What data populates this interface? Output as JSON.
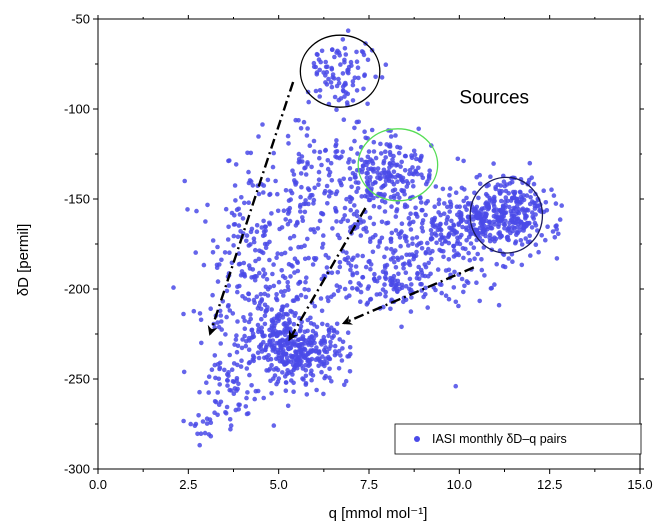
{
  "chart_data": {
    "type": "scatter",
    "xlabel": "q [mmol mol⁻¹]",
    "ylabel": "δD [permil]",
    "xlim": [
      0,
      15
    ],
    "ylim": [
      -300,
      -50
    ],
    "xticks": [
      "0.0",
      "2.5",
      "5.0",
      "7.5",
      "10.0",
      "12.5",
      "15.0"
    ],
    "yticks": [
      "-50",
      "-100",
      "-150",
      "-200",
      "-250",
      "-300"
    ],
    "grid": false,
    "legend_position": "bottom-right",
    "series": [
      {
        "name": "IASI monthly δD–q pairs",
        "color": "#4a4ae8",
        "marker": "circle",
        "clusters": [
          {
            "center": [
              6.8,
              -80
            ],
            "spread": [
              0.5,
              10
            ],
            "n": 90
          },
          {
            "center": [
              8.2,
              -135
            ],
            "spread": [
              0.6,
              10
            ],
            "n": 170
          },
          {
            "center": [
              11.0,
              -160
            ],
            "spread": [
              0.8,
              8
            ],
            "n": 300
          },
          {
            "center": [
              9.6,
              -170
            ],
            "spread": [
              1.2,
              10
            ],
            "n": 220
          },
          {
            "center": [
              5.5,
              -235
            ],
            "spread": [
              0.7,
              9
            ],
            "n": 330
          },
          {
            "center": [
              4.8,
              -215
            ],
            "spread": [
              0.9,
              18
            ],
            "n": 200
          },
          {
            "center": [
              4.5,
              -170
            ],
            "spread": [
              0.8,
              22
            ],
            "n": 160
          },
          {
            "center": [
              6.5,
              -150
            ],
            "spread": [
              0.9,
              25
            ],
            "n": 200
          },
          {
            "center": [
              8.5,
              -195
            ],
            "spread": [
              1.1,
              8
            ],
            "n": 160
          },
          {
            "center": [
              3.6,
              -258
            ],
            "spread": [
              0.4,
              10
            ],
            "n": 60
          },
          {
            "center": [
              2.9,
              -275
            ],
            "spread": [
              0.25,
              4
            ],
            "n": 14
          },
          {
            "center": [
              11.5,
              -150
            ],
            "spread": [
              0.5,
              8
            ],
            "n": 60
          }
        ],
        "outliers": [
          [
            2.4,
            -140
          ],
          [
            9.9,
            -254
          ],
          [
            8.4,
            -221
          ],
          [
            12.7,
            -183
          ],
          [
            11.1,
            -209
          ]
        ]
      }
    ],
    "annotations": [
      {
        "text": "Sources",
        "x": 10.0,
        "y": -97
      }
    ],
    "source_circles": [
      {
        "x": 6.7,
        "y": -79,
        "rx": 1.1,
        "ry": 20,
        "color": "#000000"
      },
      {
        "x": 8.3,
        "y": -131,
        "rx": 1.1,
        "ry": 20,
        "color": "#55dd55"
      },
      {
        "x": 11.3,
        "y": -159,
        "rx": 1.0,
        "ry": 21,
        "color": "#1a1a5a"
      }
    ],
    "arrows": [
      {
        "from": [
          5.4,
          -85
        ],
        "to": [
          3.1,
          -225
        ]
      },
      {
        "from": [
          7.4,
          -155
        ],
        "to": [
          5.3,
          -228
        ]
      },
      {
        "from": [
          10.4,
          -188
        ],
        "to": [
          6.8,
          -219
        ]
      }
    ]
  }
}
